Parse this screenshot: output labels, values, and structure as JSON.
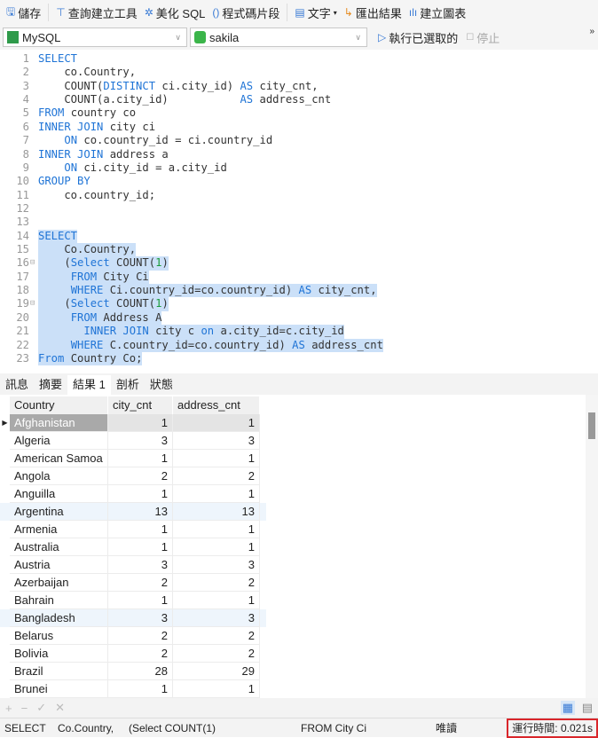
{
  "toolbar": {
    "save": "儲存",
    "query_builder": "查詢建立工具",
    "beautify": "美化 SQL",
    "snippet": "程式碼片段",
    "text": "文字",
    "export": "匯出結果",
    "chart": "建立圖表"
  },
  "connection": {
    "db_type": "MySQL",
    "database": "sakila",
    "run_selected": "執行已選取的",
    "stop": "停止",
    "more": "»"
  },
  "editor": {
    "lines": [
      [
        [
          "SELECT",
          "kw"
        ]
      ],
      [
        [
          "    co.Country,",
          "pl"
        ]
      ],
      [
        [
          "    COUNT(",
          "pl"
        ],
        [
          "DISTINCT",
          "kw"
        ],
        [
          " ci.city_id) ",
          "pl"
        ],
        [
          "AS",
          "kw"
        ],
        [
          " city_cnt,",
          "pl"
        ]
      ],
      [
        [
          "    COUNT(a.city_id)           ",
          "pl"
        ],
        [
          "AS",
          "kw"
        ],
        [
          " address_cnt",
          "pl"
        ]
      ],
      [
        [
          "FROM",
          "kw"
        ],
        [
          " country co",
          "pl"
        ]
      ],
      [
        [
          "INNER JOIN",
          "kw"
        ],
        [
          " city ci",
          "pl"
        ]
      ],
      [
        [
          "    ",
          "pl"
        ],
        [
          "ON",
          "kw"
        ],
        [
          " co.country_id = ci.country_id",
          "pl"
        ]
      ],
      [
        [
          "INNER JOIN",
          "kw"
        ],
        [
          " address a",
          "pl"
        ]
      ],
      [
        [
          "    ",
          "pl"
        ],
        [
          "ON",
          "kw"
        ],
        [
          " ci.city_id = a.city_id",
          "pl"
        ]
      ],
      [
        [
          "GROUP BY",
          "kw"
        ]
      ],
      [
        [
          "    co.country_id;",
          "pl"
        ]
      ],
      [],
      [],
      [
        [
          "SELECT",
          "kw"
        ]
      ],
      [
        [
          "    Co.Country,",
          "pl"
        ]
      ],
      [
        [
          "    (",
          "pl"
        ],
        [
          "Select",
          "kw"
        ],
        [
          " COUNT(",
          "pl"
        ],
        [
          "1",
          "nm"
        ],
        [
          ")",
          "pl"
        ]
      ],
      [
        [
          "     ",
          "pl"
        ],
        [
          "FROM",
          "kw"
        ],
        [
          " City Ci",
          "pl"
        ]
      ],
      [
        [
          "     ",
          "pl"
        ],
        [
          "WHERE",
          "kw"
        ],
        [
          " Ci.country_id=co.country_id) ",
          "pl"
        ],
        [
          "AS",
          "kw"
        ],
        [
          " city_cnt,",
          "pl"
        ]
      ],
      [
        [
          "    (",
          "pl"
        ],
        [
          "Select",
          "kw"
        ],
        [
          " COUNT(",
          "pl"
        ],
        [
          "1",
          "nm"
        ],
        [
          ")",
          "pl"
        ]
      ],
      [
        [
          "     ",
          "pl"
        ],
        [
          "FROM",
          "kw"
        ],
        [
          " Address A",
          "pl"
        ]
      ],
      [
        [
          "       ",
          "pl"
        ],
        [
          "INNER JOIN",
          "kw"
        ],
        [
          " city c ",
          "pl"
        ],
        [
          "on",
          "kw"
        ],
        [
          " a.city_id=c.city_id",
          "pl"
        ]
      ],
      [
        [
          "     ",
          "pl"
        ],
        [
          "WHERE",
          "kw"
        ],
        [
          " C.country_id=co.country_id) ",
          "pl"
        ],
        [
          "AS",
          "kw"
        ],
        [
          " address_cnt",
          "pl"
        ]
      ],
      [
        [
          "From",
          "kw"
        ],
        [
          " Country Co;",
          "pl"
        ]
      ]
    ],
    "selected_from": 14,
    "selected_to": 23,
    "fold_lines": [
      16,
      19
    ]
  },
  "tabs": [
    {
      "label": "訊息"
    },
    {
      "label": "摘要"
    },
    {
      "label": "結果 1",
      "active": true
    },
    {
      "label": "剖析"
    },
    {
      "label": "狀態"
    }
  ],
  "grid": {
    "columns": [
      "Country",
      "city_cnt",
      "address_cnt"
    ],
    "rows": [
      [
        "Afghanistan",
        1,
        1
      ],
      [
        "Algeria",
        3,
        3
      ],
      [
        "American Samoa",
        1,
        1
      ],
      [
        "Angola",
        2,
        2
      ],
      [
        "Anguilla",
        1,
        1
      ],
      [
        "Argentina",
        13,
        13
      ],
      [
        "Armenia",
        1,
        1
      ],
      [
        "Australia",
        1,
        1
      ],
      [
        "Austria",
        3,
        3
      ],
      [
        "Azerbaijan",
        2,
        2
      ],
      [
        "Bahrain",
        1,
        1
      ],
      [
        "Bangladesh",
        3,
        3
      ],
      [
        "Belarus",
        2,
        2
      ],
      [
        "Bolivia",
        2,
        2
      ],
      [
        "Brazil",
        28,
        29
      ],
      [
        "Brunei",
        1,
        1
      ]
    ]
  },
  "status": {
    "s1": "SELECT",
    "s2": "Co.Country,",
    "s3": "(Select COUNT(1)",
    "s4": "FROM City Ci",
    "mode": "唯讀",
    "runtime": "運行時間: 0.021s"
  },
  "colors": {
    "keyword": "#1f74d6",
    "number": "#1a9a3a",
    "selection": "#cbe0f8",
    "highlight_box": "#d9262b"
  }
}
